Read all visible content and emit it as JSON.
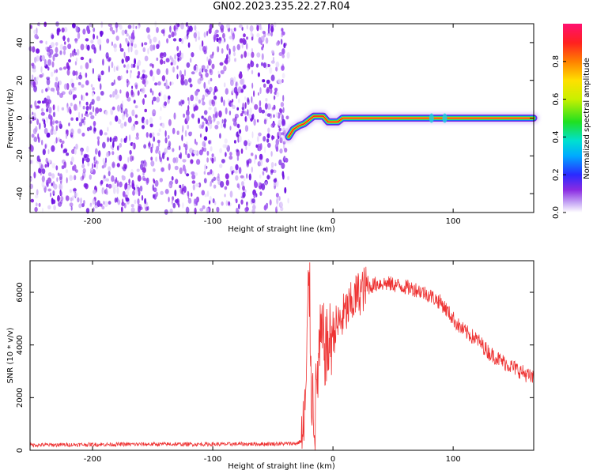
{
  "title": "GN02.2023.235.22.27.R04",
  "colorbar": {
    "label": "Normalized spectral amplitude",
    "ticks": [
      "0.0",
      "0.2",
      "0.4",
      "0.6",
      "0.8"
    ]
  },
  "chart_data": [
    {
      "type": "heatmap",
      "xlabel": "Height of straight line (km)",
      "ylabel": "Frequency (Hz)",
      "xlim": [
        -252,
        167
      ],
      "ylim": [
        -50,
        50
      ],
      "xticks": [
        -200,
        -100,
        0,
        100
      ],
      "yticks": [
        -40,
        -20,
        0,
        20,
        40
      ],
      "value_range": [
        0,
        1
      ],
      "noise_region": {
        "x_from": -252,
        "x_to": -37,
        "note_level": "low amplitude noise"
      },
      "signal_path": {
        "x": [
          -37,
          -33,
          -28,
          -24,
          -20,
          -16,
          -12,
          -8,
          -4,
          0,
          4,
          8,
          20,
          40,
          60,
          80,
          85,
          90,
          95,
          100,
          120,
          140,
          167
        ],
        "y": [
          -10,
          -6,
          -4,
          -3,
          -1,
          1,
          1,
          1,
          -2,
          -2,
          -2,
          0,
          0,
          0,
          0,
          0,
          0,
          0,
          0,
          0,
          0,
          0,
          0
        ]
      }
    },
    {
      "type": "line",
      "xlabel": "Height of straight line (km)",
      "ylabel": "SNR (10 * v/v)",
      "xlim": [
        -252,
        167
      ],
      "ylim": [
        0,
        7200
      ],
      "xticks": [
        -200,
        -100,
        0,
        100
      ],
      "yticks": [
        0,
        2000,
        4000,
        6000
      ],
      "series": [
        {
          "color": "#ee3333",
          "x": [
            -252,
            -200,
            -150,
            -100,
            -60,
            -40,
            -30,
            -25,
            -22,
            -20,
            -18,
            -15,
            -12,
            -10,
            -5,
            0,
            5,
            10,
            15,
            20,
            25,
            30,
            35,
            40,
            50,
            60,
            70,
            80,
            90,
            95,
            100,
            105,
            110,
            115,
            120,
            125,
            130,
            140,
            150,
            160,
            167
          ],
          "y": [
            200,
            220,
            230,
            230,
            240,
            250,
            260,
            400,
            2500,
            7200,
            2500,
            1200,
            3500,
            4200,
            3800,
            4500,
            4800,
            5200,
            5500,
            5900,
            6100,
            6200,
            6300,
            6350,
            6300,
            6200,
            6100,
            5900,
            5600,
            5300,
            5000,
            4700,
            4500,
            4350,
            4200,
            3950,
            3700,
            3400,
            3150,
            2900,
            2700
          ]
        }
      ]
    }
  ]
}
